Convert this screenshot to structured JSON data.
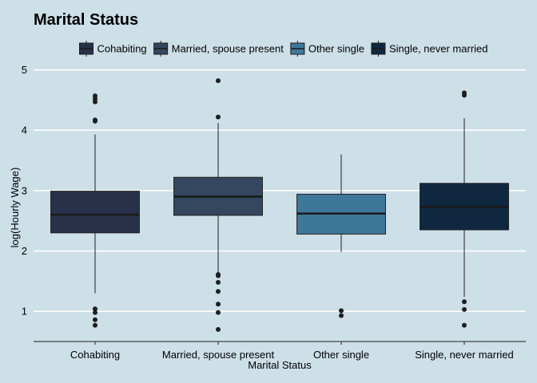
{
  "chart_data": {
    "type": "boxplot",
    "title": "Marital Status",
    "xlabel": "Marital Status",
    "ylabel": "log(Hourly Wage)",
    "ylim": [
      0.5,
      5.1
    ],
    "yticks": [
      1,
      2,
      3,
      4,
      5
    ],
    "grid": "horizontal",
    "legend_position": "top",
    "categories": [
      "Cohabiting",
      "Married, spouse present",
      "Other single",
      "Single, never married"
    ],
    "series": [
      {
        "name": "Cohabiting",
        "color": "#283149",
        "whisker_low": 1.3,
        "q1": 2.3,
        "median": 2.6,
        "q3": 2.99,
        "whisker_high": 3.93,
        "outliers": [
          4.57,
          4.52,
          4.47,
          4.17,
          4.15,
          1.04,
          0.98,
          0.86,
          0.77
        ]
      },
      {
        "name": "Married, spouse present",
        "color": "#34475e",
        "whisker_low": 1.63,
        "q1": 2.59,
        "median": 2.9,
        "q3": 3.22,
        "whisker_high": 4.12,
        "outliers": [
          4.82,
          4.22,
          1.61,
          1.59,
          1.48,
          1.33,
          1.12,
          0.98,
          0.7
        ]
      },
      {
        "name": "Other single",
        "color": "#3e7799",
        "whisker_low": 1.98,
        "q1": 2.28,
        "median": 2.62,
        "q3": 2.94,
        "whisker_high": 3.6,
        "outliers": [
          1.01,
          0.93
        ]
      },
      {
        "name": "Single, never married",
        "color": "#0f2840",
        "whisker_low": 1.24,
        "q1": 2.35,
        "median": 2.73,
        "q3": 3.12,
        "whisker_high": 4.2,
        "outliers": [
          4.62,
          4.58,
          1.16,
          1.03,
          0.77
        ]
      }
    ]
  }
}
